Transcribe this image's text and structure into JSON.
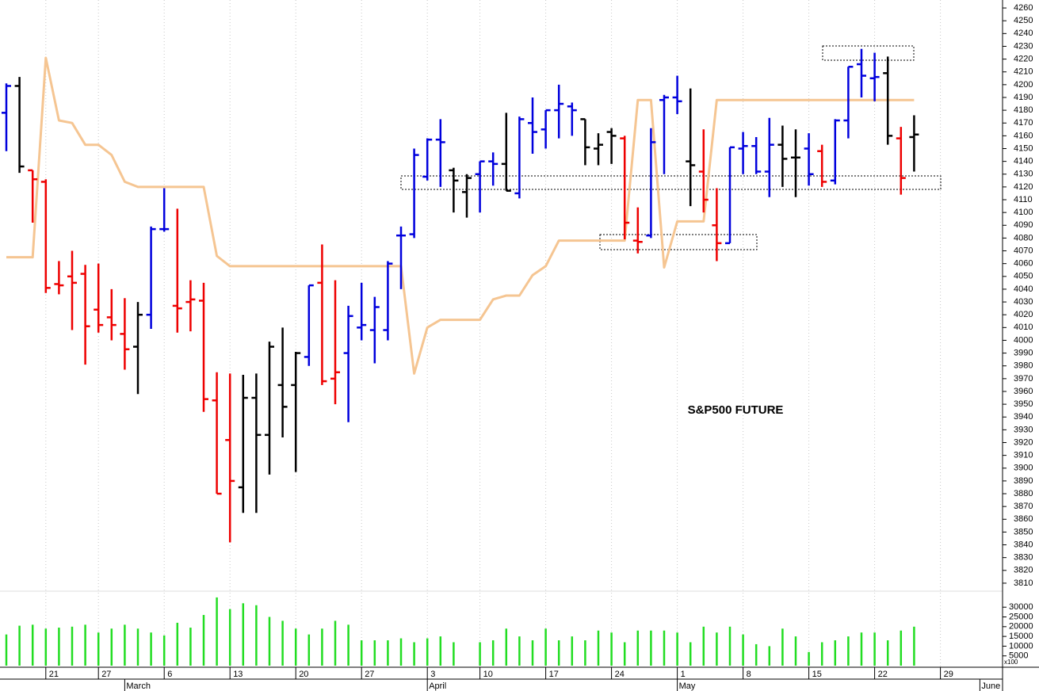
{
  "chart_data": {
    "type": "ohlc",
    "annotation": "S&P500 FUTURE",
    "categories": [
      null,
      null,
      null,
      "21",
      null,
      null,
      null,
      "27",
      null,
      null,
      null,
      null,
      "6",
      null,
      null,
      null,
      null,
      "13",
      null,
      null,
      null,
      null,
      "20",
      null,
      null,
      null,
      null,
      "27",
      null,
      null,
      null,
      null,
      "3",
      null,
      null,
      null,
      "10",
      null,
      null,
      null,
      null,
      "17",
      null,
      null,
      null,
      null,
      "24",
      null,
      null,
      null,
      null,
      "1",
      null,
      null,
      null,
      null,
      "8",
      null,
      null,
      null,
      null,
      "15",
      null,
      null,
      null,
      null,
      "22",
      null,
      null,
      null,
      null,
      "29",
      null,
      null,
      null
    ],
    "months": [
      null,
      null,
      null,
      null,
      null,
      null,
      null,
      null,
      null,
      "March",
      null,
      null,
      null,
      null,
      null,
      null,
      null,
      null,
      null,
      null,
      null,
      null,
      null,
      null,
      null,
      null,
      null,
      null,
      null,
      null,
      null,
      null,
      "April",
      null,
      null,
      null,
      null,
      null,
      null,
      null,
      null,
      null,
      null,
      null,
      null,
      null,
      null,
      null,
      null,
      null,
      null,
      "May",
      null,
      null,
      null,
      null,
      null,
      null,
      null,
      null,
      null,
      null,
      null,
      null,
      null,
      null,
      null,
      null,
      null,
      null,
      null,
      null,
      null,
      null,
      "June"
    ],
    "open": [
      4178,
      4199,
      4133,
      4124,
      4044,
      4050,
      4052,
      4024,
      4018,
      4005,
      3995,
      4020,
      4087,
      4027,
      4030,
      4031,
      3953,
      3922,
      3885,
      3955,
      3926,
      3965,
      3965,
      3987,
      4045,
      3970,
      3990,
      4010,
      4008,
      4008,
      4082,
      4083,
      4128,
      4157,
      4133,
      4116,
      4130,
      4140,
      4138,
      4115,
      4170,
      4165,
      4180,
      4183,
      4173,
      4150,
      4163,
      4158,
      4078,
      4082,
      4188,
      4190,
      4140,
      4132,
      4090,
      4076,
      4150,
      4152,
      4132,
      4153,
      4143,
      4150,
      4148,
      4125,
      4172,
      4216,
      4205,
      4209,
      4158,
      4159,
      null,
      null,
      null,
      null,
      null
    ],
    "high": [
      4201,
      4206,
      4133,
      4126,
      4062,
      4070,
      4059,
      4060,
      4040,
      4033,
      4030,
      4089,
      4119,
      4103,
      4047,
      4045,
      3975,
      3974,
      3973,
      3974,
      3999,
      4010,
      3991,
      4043,
      4075,
      4047,
      4027,
      4045,
      4034,
      4062,
      4089,
      4150,
      4158,
      4173,
      4135,
      4130,
      4140,
      4147,
      4178,
      4175,
      4190,
      4180,
      4200,
      4186,
      4173,
      4162,
      4166,
      4160,
      4104,
      4166,
      4192,
      4207,
      4197,
      4165,
      4119,
      4151,
      4163,
      4159,
      4174,
      4168,
      4165,
      4162,
      4153,
      4173,
      4214,
      4228,
      4225,
      4222,
      4167,
      4176,
      null,
      null,
      null,
      null,
      null
    ],
    "low": [
      4148,
      4131,
      4092,
      4037,
      4036,
      4008,
      3981,
      4006,
      4000,
      3977,
      3958,
      4009,
      4085,
      4006,
      4007,
      3944,
      3880,
      3842,
      3865,
      3865,
      3895,
      3924,
      3897,
      3980,
      3965,
      3950,
      3936,
      4000,
      3982,
      4000,
      4040,
      4080,
      4125,
      4120,
      4100,
      4096,
      4100,
      4121,
      4117,
      4111,
      4146,
      4150,
      4158,
      4160,
      4137,
      4137,
      4138,
      4079,
      4068,
      4080,
      4130,
      4177,
      4105,
      4100,
      4062,
      4076,
      4130,
      4130,
      4112,
      4120,
      4112,
      4121,
      4120,
      4122,
      4158,
      4190,
      4187,
      4153,
      4114,
      4132,
      null,
      null,
      null,
      null,
      null
    ],
    "close": [
      4199,
      4136,
      4126,
      4041,
      4043,
      4045,
      4011,
      4012,
      4012,
      3993,
      4020,
      4087,
      4087,
      4025,
      4032,
      3954,
      3880,
      3890,
      3955,
      3926,
      3995,
      3948,
      3990,
      4043,
      3968,
      3975,
      4019,
      4012,
      4026,
      4060,
      4082,
      4145,
      4157,
      4155,
      4125,
      4127,
      4140,
      4138,
      4117,
      4173,
      4163,
      4180,
      4185,
      4180,
      4151,
      4153,
      4160,
      4092,
      4077,
      4155,
      4190,
      4187,
      4137,
      4110,
      4076,
      4151,
      4152,
      4132,
      4153,
      4142,
      4143,
      4130,
      4124,
      4172,
      4214,
      4207,
      4206,
      4160,
      4127,
      4161,
      null,
      null,
      null,
      null,
      null
    ],
    "bar_colors": [
      "#0000dd",
      "#000000",
      "#ee0000",
      "#ee0000",
      "#ee0000",
      "#ee0000",
      "#ee0000",
      "#ee0000",
      "#ee0000",
      "#ee0000",
      "#000000",
      "#0000dd",
      "#0000dd",
      "#ee0000",
      "#ee0000",
      "#ee0000",
      "#ee0000",
      "#ee0000",
      "#000000",
      "#000000",
      "#000000",
      "#000000",
      "#000000",
      "#0000dd",
      "#ee0000",
      "#ee0000",
      "#0000dd",
      "#0000dd",
      "#0000dd",
      "#0000dd",
      "#0000dd",
      "#0000dd",
      "#0000dd",
      "#0000dd",
      "#000000",
      "#000000",
      "#0000dd",
      "#0000dd",
      "#000000",
      "#0000dd",
      "#0000dd",
      "#0000dd",
      "#0000dd",
      "#0000dd",
      "#000000",
      "#000000",
      "#000000",
      "#ee0000",
      "#ee0000",
      "#0000dd",
      "#0000dd",
      "#0000dd",
      "#000000",
      "#ee0000",
      "#ee0000",
      "#0000dd",
      "#0000dd",
      "#0000dd",
      "#0000dd",
      "#000000",
      "#000000",
      "#0000dd",
      "#ee0000",
      "#0000dd",
      "#0000dd",
      "#0000dd",
      "#0000dd",
      "#000000",
      "#ee0000",
      "#000000",
      null,
      null,
      null,
      null,
      null
    ],
    "ylim": [
      3805,
      4265
    ],
    "yticks": [
      3810,
      3820,
      3830,
      3840,
      3850,
      3860,
      3870,
      3880,
      3890,
      3900,
      3910,
      3920,
      3930,
      3940,
      3950,
      3960,
      3970,
      3980,
      3990,
      4000,
      4010,
      4020,
      4030,
      4040,
      4050,
      4060,
      4070,
      4080,
      4090,
      4100,
      4110,
      4120,
      4130,
      4140,
      4150,
      4160,
      4170,
      4180,
      4190,
      4200,
      4210,
      4220,
      4230,
      4240,
      4250,
      4260
    ],
    "line": {
      "color": "#f5c592",
      "values": [
        4065,
        4065,
        4065,
        4221,
        4172,
        4170,
        4153,
        4153,
        4145,
        4124,
        4120,
        4120,
        4120,
        4120,
        4120,
        4120,
        4066,
        4058,
        4058,
        4058,
        4058,
        4058,
        4058,
        4058,
        4058,
        4058,
        4058,
        4058,
        4058,
        4058,
        4058,
        3974,
        4010,
        4016,
        4016,
        4016,
        4016,
        4032,
        4035,
        4035,
        4051,
        4058,
        4078,
        4078,
        4078,
        4078,
        4078,
        4078,
        4188,
        4188,
        4057,
        4093,
        4093,
        4093,
        4188,
        4188,
        4188,
        4188,
        4188,
        4188,
        4188,
        4188,
        4188,
        4188,
        4188,
        4188,
        4188,
        4188,
        4188,
        4188,
        null,
        null,
        null,
        null,
        null
      ]
    },
    "volume": {
      "type": "bar",
      "color": "#22dd22",
      "unit_label": "x100",
      "values": [
        16000,
        20500,
        21000,
        19000,
        19500,
        20000,
        21000,
        17000,
        19000,
        21000,
        19000,
        17000,
        15500,
        22000,
        19500,
        26000,
        35000,
        29000,
        32000,
        31000,
        25000,
        23000,
        19000,
        16000,
        19000,
        23000,
        21000,
        13000,
        13000,
        13000,
        14000,
        12000,
        14000,
        15000,
        12000,
        null,
        12000,
        13000,
        19000,
        15000,
        13000,
        19000,
        13000,
        15000,
        13000,
        18000,
        17000,
        12000,
        18000,
        18000,
        18000,
        17000,
        12000,
        20000,
        17000,
        20000,
        16000,
        11000,
        10000,
        19000,
        15000,
        7000,
        12000,
        13000,
        15000,
        17000,
        17000,
        13000,
        18000,
        20000,
        null,
        null,
        null,
        null,
        null
      ],
      "ylim": [
        0,
        37000
      ],
      "yticks": [
        5000,
        10000,
        15000,
        20000,
        25000,
        30000
      ]
    }
  }
}
